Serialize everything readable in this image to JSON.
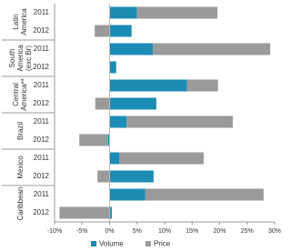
{
  "chart_data": {
    "type": "bar",
    "orientation": "horizontal",
    "stacked": true,
    "groups": [
      "Latin America",
      "South America (exc Br)",
      "Central America**",
      "Brazil",
      "Mexico",
      "Caribbean"
    ],
    "categories": [
      "2011",
      "2012",
      "2011",
      "2012",
      "2011",
      "2012",
      "2011",
      "2012",
      "2011",
      "2012",
      "2011",
      "2012"
    ],
    "series": [
      {
        "name": "Volume",
        "color": "#1b8db5",
        "values": [
          5,
          4,
          7.9,
          1.2,
          14.1,
          8.5,
          3.1,
          -0.3,
          1.8,
          8,
          6.5,
          0.4
        ]
      },
      {
        "name": "Price",
        "color": "#9a9a9a",
        "values": [
          14.6,
          -2.7,
          21.3,
          0,
          5.6,
          -2.6,
          19.3,
          -5.2,
          15.3,
          -2.2,
          21.5,
          -9.1
        ]
      }
    ],
    "xlim": [
      -10,
      30
    ],
    "xticks": [
      {
        "value": -10,
        "label": "-10%"
      },
      {
        "value": -5,
        "label": "-5%"
      },
      {
        "value": 0,
        "label": "0%"
      },
      {
        "value": 5,
        "label": "5%"
      },
      {
        "value": 10,
        "label": "10%"
      },
      {
        "value": 15,
        "label": "15%"
      },
      {
        "value": 20,
        "label": "20%"
      },
      {
        "value": 25,
        "label": "25%"
      },
      {
        "value": 30,
        "label": "30%"
      }
    ],
    "legend": "bottom"
  }
}
